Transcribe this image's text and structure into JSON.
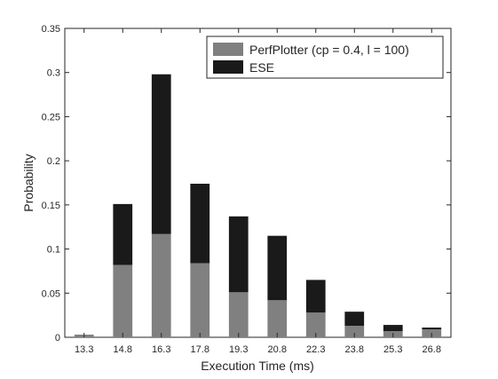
{
  "chart_data": {
    "type": "bar",
    "stacked": true,
    "categories": [
      "13.3",
      "14.8",
      "16.3",
      "17.8",
      "19.3",
      "20.8",
      "22.3",
      "23.8",
      "25.3",
      "26.8"
    ],
    "series": [
      {
        "name": "PerfPlotter (cp = 0.4, l = 100)",
        "color": "#808080",
        "values": [
          0.003,
          0.082,
          0.117,
          0.084,
          0.051,
          0.042,
          0.028,
          0.013,
          0.007,
          0.009
        ]
      },
      {
        "name": "ESE",
        "color": "#1a1a1a",
        "values": [
          0.0,
          0.069,
          0.181,
          0.09,
          0.086,
          0.073,
          0.037,
          0.016,
          0.007,
          0.002
        ]
      }
    ],
    "xlabel": "Execution Time (ms)",
    "ylabel": "Probability",
    "ylim": [
      0,
      0.35
    ],
    "yticks": [
      "0",
      "0.05",
      "0.1",
      "0.15",
      "0.2",
      "0.25",
      "0.3",
      "0.35"
    ],
    "grid": false,
    "legend_position": "top-right"
  }
}
